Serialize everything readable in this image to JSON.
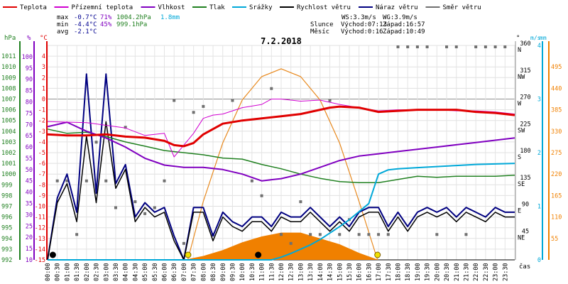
{
  "chart_data": {
    "type": "line",
    "title": "7.2.2018",
    "legend": [
      {
        "name": "Teplota",
        "color": "#e00000"
      },
      {
        "name": "Přízemní teplota",
        "color": "#d000d0"
      },
      {
        "name": "Vlhkost",
        "color": "#8000c0"
      },
      {
        "name": "Tlak",
        "color": "#208020"
      },
      {
        "name": "Srážky",
        "color": "#00a8d8"
      },
      {
        "name": "Rychlost větru",
        "color": "#000000"
      },
      {
        "name": "Náraz větru",
        "color": "#000080"
      },
      {
        "name": "Směr větru",
        "color": "#707070"
      }
    ],
    "stats": {
      "max": {
        "label": "max",
        "temp": "-0.7°C",
        "hum": "71%",
        "press": "1004.2hPa",
        "rain": "1.8mm"
      },
      "min": {
        "label": "min",
        "temp": "-4.4°C",
        "hum": "45%",
        "press": "999.1hPa"
      },
      "avg": {
        "label": "avg",
        "temp": "-2.1°C"
      }
    },
    "info": {
      "ws": "WS:3.3m/s",
      "wg": "WG:3.9m/s",
      "slunce": "Slunce",
      "mesic": "Měsíc",
      "sun_rise": "Východ:07:13",
      "sun_set": "Západ:16:57",
      "moon_rise": "Východ:0:16",
      "moon_set": "Západ:10:49"
    },
    "axes": {
      "hpa_unit": "hPa",
      "pct_unit": "%",
      "c_unit": "°C",
      "deg_unit": "°",
      "ms_unit": "m/s",
      "mm_unit": "mm",
      "x_label": "čas",
      "temp_range": [
        -15,
        5
      ],
      "hpa_ticks": [
        992,
        993,
        994,
        995,
        996,
        997,
        998,
        999,
        1000,
        1001,
        1002,
        1003,
        1004,
        1005,
        1006,
        1007,
        1008,
        1009,
        1010,
        1011
      ],
      "pct_ticks": [
        10,
        15,
        20,
        25,
        30,
        35,
        40,
        45,
        50,
        55,
        60,
        65,
        70,
        75,
        80,
        85,
        90,
        95,
        100
      ],
      "c_ticks": [
        -15,
        -14,
        -13,
        -12,
        -11,
        -10,
        -9,
        -8,
        -7,
        -6,
        -5,
        -4,
        -3,
        -2,
        -1,
        0,
        1,
        2,
        3,
        4
      ],
      "dir_ticks": [
        {
          "v": "360",
          "l": "N"
        },
        {
          "v": "315",
          "l": "NW"
        },
        {
          "v": "270",
          "l": "W"
        },
        {
          "v": "225",
          "l": "SW"
        },
        {
          "v": "180",
          "l": "S"
        },
        {
          "v": "135",
          "l": "SE"
        },
        {
          "v": "90",
          "l": "E"
        },
        {
          "v": "45",
          "l": "NE"
        }
      ],
      "ms_ticks": [
        "0",
        "1",
        "2",
        "3",
        "4"
      ],
      "rad_ticks": [
        "55",
        "110",
        "165",
        "220",
        "275",
        "330",
        "385",
        "440",
        "495"
      ],
      "time_ticks": [
        "00:00",
        "00:30",
        "01:00",
        "01:30",
        "02:00",
        "02:30",
        "03:00",
        "03:30",
        "04:00",
        "04:30",
        "05:00",
        "05:30",
        "06:00",
        "06:30",
        "07:00",
        "07:30",
        "08:00",
        "08:30",
        "09:00",
        "09:30",
        "10:00",
        "10:30",
        "11:00",
        "11:30",
        "12:00",
        "12:30",
        "13:00",
        "13:30",
        "14:00",
        "14:30",
        "15:00",
        "15:30",
        "16:00",
        "16:30",
        "17:00",
        "17:30",
        "18:00",
        "18:30",
        "19:00",
        "19:30",
        "20:00",
        "20:30",
        "21:00",
        "21:30",
        "22:00",
        "22:30",
        "23:00",
        "23:30"
      ]
    },
    "series": [
      {
        "name": "Teplota",
        "unit": "°C",
        "color": "#e00000",
        "x": [
          0,
          1,
          2,
          3,
          4,
          5,
          6,
          6.5,
          7,
          7.5,
          8,
          9,
          10,
          11,
          12,
          13,
          14,
          14.5,
          15,
          16,
          17,
          18,
          19,
          20,
          21,
          22,
          23,
          24
        ],
        "y": [
          -3.3,
          -3.4,
          -3.4,
          -3.3,
          -3.5,
          -3.6,
          -3.9,
          -4.3,
          -4.4,
          -4.1,
          -3.3,
          -2.3,
          -2.0,
          -1.8,
          -1.6,
          -1.4,
          -1.0,
          -0.8,
          -0.7,
          -0.8,
          -1.2,
          -1.1,
          -1.0,
          -1.0,
          -1.0,
          -1.2,
          -1.3,
          -1.5
        ]
      },
      {
        "name": "Přízemní teplota",
        "unit": "°C",
        "color": "#d000d0",
        "x": [
          0,
          2,
          4,
          5,
          6,
          6.5,
          7,
          7.5,
          8,
          8.5,
          9,
          10,
          11,
          11.5,
          12,
          13,
          14,
          15,
          16,
          17,
          18,
          19,
          20,
          21,
          22,
          23,
          24
        ],
        "y": [
          -2.1,
          -2.2,
          -2.7,
          -3.4,
          -3.2,
          -5.4,
          -4.3,
          -3.2,
          -1.8,
          -1.5,
          -1.4,
          -0.8,
          -0.5,
          0,
          0,
          -0.2,
          -0.1,
          -0.5,
          -0.8,
          -1.1,
          -1.0,
          -1.0,
          -1.0,
          -1.1,
          -1.1,
          -1.2,
          -1.4
        ]
      },
      {
        "name": "Vlhkost",
        "unit": "%",
        "color": "#8000c0",
        "x": [
          0,
          1,
          2,
          3,
          4,
          5,
          6,
          7,
          8,
          9,
          10,
          11,
          12,
          13,
          14,
          15,
          16,
          17,
          18,
          19,
          20,
          21,
          22,
          23,
          24
        ],
        "y": [
          69,
          71,
          67,
          64,
          60,
          55,
          52,
          51,
          51,
          50,
          48,
          45,
          46,
          48,
          51,
          54,
          56,
          57,
          58,
          59,
          60,
          61,
          62,
          63,
          64
        ]
      },
      {
        "name": "Tlak",
        "unit": "hPa",
        "color": "#208020",
        "x": [
          0,
          1,
          2,
          3,
          4,
          5,
          6,
          7,
          8,
          9,
          10,
          11,
          12,
          13,
          14,
          15,
          16,
          17,
          18,
          19,
          20,
          21,
          22,
          23,
          24
        ],
        "y": [
          1004.2,
          1003.8,
          1003.9,
          1003.5,
          1003.0,
          1002.6,
          1002.2,
          1002.0,
          1001.8,
          1001.5,
          1001.4,
          1000.9,
          1000.5,
          1000.0,
          999.6,
          999.3,
          999.2,
          999.2,
          999.5,
          999.8,
          999.7,
          999.8,
          999.8,
          999.8,
          999.9
        ]
      },
      {
        "name": "Srážky",
        "unit": "mm",
        "color": "#00a8d8",
        "x": [
          0,
          11.5,
          12,
          12.5,
          13,
          13.5,
          14,
          14.5,
          15,
          15.5,
          16,
          16.5,
          17,
          17.5,
          18,
          19,
          20,
          21,
          22,
          23,
          24
        ],
        "y": [
          0,
          0,
          0.05,
          0.12,
          0.2,
          0.28,
          0.38,
          0.5,
          0.62,
          0.75,
          0.9,
          1.05,
          1.6,
          1.68,
          1.7,
          1.72,
          1.74,
          1.76,
          1.78,
          1.79,
          1.8
        ]
      },
      {
        "name": "Rychlost větru",
        "unit": "m/s",
        "color": "#000000",
        "x": [
          0,
          0.5,
          1,
          1.5,
          2,
          2.5,
          3,
          3.5,
          4,
          4.5,
          5,
          5.5,
          6,
          6.5,
          7,
          7.5,
          8,
          8.5,
          9,
          9.5,
          10,
          10.5,
          11,
          11.5,
          12,
          12.5,
          13,
          13.5,
          14,
          14.5,
          15,
          15.5,
          16,
          16.5,
          17,
          17.5,
          18,
          18.5,
          19,
          19.5,
          20,
          20.5,
          21,
          21.5,
          22,
          22.5,
          23,
          23.5,
          24
        ],
        "y": [
          0,
          1.2,
          1.6,
          0.8,
          2.6,
          1.2,
          2.9,
          1.5,
          1.9,
          0.8,
          1.1,
          0.9,
          1.0,
          0.4,
          0,
          1.0,
          1.0,
          0.4,
          0.9,
          0.7,
          0.6,
          0.8,
          0.8,
          0.6,
          0.9,
          0.8,
          0.8,
          1.0,
          0.8,
          0.6,
          0.8,
          0.6,
          0.9,
          1.0,
          1.0,
          0.6,
          0.9,
          0.6,
          0.9,
          1.0,
          0.9,
          1.0,
          0.8,
          1.0,
          0.9,
          0.8,
          1.0,
          0.9,
          0.9
        ]
      },
      {
        "name": "Náraz větru",
        "unit": "m/s",
        "color": "#000080",
        "x": [
          0,
          0.5,
          1,
          1.5,
          2,
          2.5,
          3,
          3.5,
          4,
          4.5,
          5,
          5.5,
          6,
          6.5,
          7,
          7.5,
          8,
          8.5,
          9,
          9.5,
          10,
          10.5,
          11,
          11.5,
          12,
          12.5,
          13,
          13.5,
          14,
          14.5,
          15,
          15.5,
          16,
          16.5,
          17,
          17.5,
          18,
          18.5,
          19,
          19.5,
          20,
          20.5,
          21,
          21.5,
          22,
          22.5,
          23,
          23.5,
          24
        ],
        "y": [
          0,
          1.3,
          1.8,
          1.0,
          3.9,
          1.4,
          3.9,
          1.6,
          2.0,
          0.9,
          1.2,
          1.0,
          1.1,
          0.5,
          0,
          1.1,
          1.1,
          0.5,
          1.0,
          0.8,
          0.7,
          0.9,
          0.9,
          0.7,
          1.0,
          0.9,
          0.9,
          1.1,
          0.9,
          0.7,
          0.9,
          0.7,
          1.0,
          1.1,
          1.1,
          0.7,
          1.0,
          0.7,
          1.0,
          1.1,
          1.0,
          1.1,
          0.9,
          1.1,
          1.0,
          0.9,
          1.1,
          1.0,
          1.0
        ]
      },
      {
        "name": "Směr větru",
        "unit": "°",
        "color": "#707070",
        "x": [
          0.5,
          1,
          1.5,
          2,
          2.5,
          3,
          3.5,
          4,
          4.5,
          5,
          5.5,
          6,
          6.5,
          7,
          7.5,
          8,
          8.5,
          9.5,
          10.5,
          11,
          11.5,
          12,
          12.5,
          13,
          13.5,
          14,
          14.5,
          15,
          15.5,
          16,
          16.5,
          17,
          17.5,
          18,
          18.5,
          19,
          19.5,
          20,
          20.5,
          21,
          21.5,
          22,
          22.5,
          23,
          23.5
        ],
        "y": [
          135,
          135,
          45,
          135,
          200,
          135,
          90,
          225,
          100,
          80,
          90,
          135,
          270,
          30,
          250,
          260,
          45,
          270,
          135,
          110,
          290,
          45,
          30,
          100,
          45,
          45,
          270,
          45,
          70,
          45,
          45,
          45,
          45,
          360,
          360,
          360,
          360,
          45,
          360,
          360,
          45,
          360,
          360,
          360,
          360
        ]
      }
    ],
    "radiation": {
      "name": "Sluneční záření",
      "unit": "W/m²",
      "color": "#f08000",
      "x": [
        7,
        8,
        9,
        10,
        11,
        12,
        13,
        14,
        15,
        16,
        17
      ],
      "y": [
        0,
        10,
        25,
        45,
        60,
        70,
        70,
        55,
        40,
        18,
        0
      ]
    },
    "radiation_theory": {
      "color": "#e88a20",
      "x": [
        7.2,
        8,
        9,
        10,
        11,
        12,
        13,
        14,
        15,
        16,
        16.95
      ],
      "y": [
        0,
        150,
        300,
        410,
        470,
        490,
        470,
        410,
        300,
        150,
        0
      ]
    },
    "markers": [
      {
        "kind": "sun",
        "label": "Východ:07:13",
        "x": 7.22
      },
      {
        "kind": "sun",
        "label": "Západ:16:57",
        "x": 16.95
      },
      {
        "kind": "moon",
        "label": "Východ:0:16",
        "x": 0.27
      },
      {
        "kind": "moon",
        "label": "Západ:10:49",
        "x": 10.82
      }
    ]
  }
}
